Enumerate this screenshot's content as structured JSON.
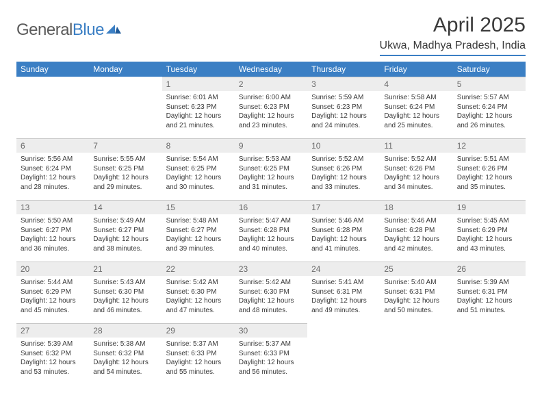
{
  "logo": {
    "part1": "General",
    "part2": "Blue"
  },
  "title": "April 2025",
  "location": "Ukwa, Madhya Pradesh, India",
  "weekdays": [
    "Sunday",
    "Monday",
    "Tuesday",
    "Wednesday",
    "Thursday",
    "Friday",
    "Saturday"
  ],
  "colors": {
    "accent": "#3b7fc4",
    "day_bg": "#ededed",
    "text": "#3a3a3a",
    "muted_text": "#6a6a6a",
    "divider": "#c8c8c8"
  },
  "weeks": [
    [
      {
        "n": "",
        "sunrise": "",
        "sunset": "",
        "daylight": ""
      },
      {
        "n": "",
        "sunrise": "",
        "sunset": "",
        "daylight": ""
      },
      {
        "n": "1",
        "sunrise": "Sunrise: 6:01 AM",
        "sunset": "Sunset: 6:23 PM",
        "daylight": "Daylight: 12 hours and 21 minutes."
      },
      {
        "n": "2",
        "sunrise": "Sunrise: 6:00 AM",
        "sunset": "Sunset: 6:23 PM",
        "daylight": "Daylight: 12 hours and 23 minutes."
      },
      {
        "n": "3",
        "sunrise": "Sunrise: 5:59 AM",
        "sunset": "Sunset: 6:23 PM",
        "daylight": "Daylight: 12 hours and 24 minutes."
      },
      {
        "n": "4",
        "sunrise": "Sunrise: 5:58 AM",
        "sunset": "Sunset: 6:24 PM",
        "daylight": "Daylight: 12 hours and 25 minutes."
      },
      {
        "n": "5",
        "sunrise": "Sunrise: 5:57 AM",
        "sunset": "Sunset: 6:24 PM",
        "daylight": "Daylight: 12 hours and 26 minutes."
      }
    ],
    [
      {
        "n": "6",
        "sunrise": "Sunrise: 5:56 AM",
        "sunset": "Sunset: 6:24 PM",
        "daylight": "Daylight: 12 hours and 28 minutes."
      },
      {
        "n": "7",
        "sunrise": "Sunrise: 5:55 AM",
        "sunset": "Sunset: 6:25 PM",
        "daylight": "Daylight: 12 hours and 29 minutes."
      },
      {
        "n": "8",
        "sunrise": "Sunrise: 5:54 AM",
        "sunset": "Sunset: 6:25 PM",
        "daylight": "Daylight: 12 hours and 30 minutes."
      },
      {
        "n": "9",
        "sunrise": "Sunrise: 5:53 AM",
        "sunset": "Sunset: 6:25 PM",
        "daylight": "Daylight: 12 hours and 31 minutes."
      },
      {
        "n": "10",
        "sunrise": "Sunrise: 5:52 AM",
        "sunset": "Sunset: 6:26 PM",
        "daylight": "Daylight: 12 hours and 33 minutes."
      },
      {
        "n": "11",
        "sunrise": "Sunrise: 5:52 AM",
        "sunset": "Sunset: 6:26 PM",
        "daylight": "Daylight: 12 hours and 34 minutes."
      },
      {
        "n": "12",
        "sunrise": "Sunrise: 5:51 AM",
        "sunset": "Sunset: 6:26 PM",
        "daylight": "Daylight: 12 hours and 35 minutes."
      }
    ],
    [
      {
        "n": "13",
        "sunrise": "Sunrise: 5:50 AM",
        "sunset": "Sunset: 6:27 PM",
        "daylight": "Daylight: 12 hours and 36 minutes."
      },
      {
        "n": "14",
        "sunrise": "Sunrise: 5:49 AM",
        "sunset": "Sunset: 6:27 PM",
        "daylight": "Daylight: 12 hours and 38 minutes."
      },
      {
        "n": "15",
        "sunrise": "Sunrise: 5:48 AM",
        "sunset": "Sunset: 6:27 PM",
        "daylight": "Daylight: 12 hours and 39 minutes."
      },
      {
        "n": "16",
        "sunrise": "Sunrise: 5:47 AM",
        "sunset": "Sunset: 6:28 PM",
        "daylight": "Daylight: 12 hours and 40 minutes."
      },
      {
        "n": "17",
        "sunrise": "Sunrise: 5:46 AM",
        "sunset": "Sunset: 6:28 PM",
        "daylight": "Daylight: 12 hours and 41 minutes."
      },
      {
        "n": "18",
        "sunrise": "Sunrise: 5:46 AM",
        "sunset": "Sunset: 6:28 PM",
        "daylight": "Daylight: 12 hours and 42 minutes."
      },
      {
        "n": "19",
        "sunrise": "Sunrise: 5:45 AM",
        "sunset": "Sunset: 6:29 PM",
        "daylight": "Daylight: 12 hours and 43 minutes."
      }
    ],
    [
      {
        "n": "20",
        "sunrise": "Sunrise: 5:44 AM",
        "sunset": "Sunset: 6:29 PM",
        "daylight": "Daylight: 12 hours and 45 minutes."
      },
      {
        "n": "21",
        "sunrise": "Sunrise: 5:43 AM",
        "sunset": "Sunset: 6:30 PM",
        "daylight": "Daylight: 12 hours and 46 minutes."
      },
      {
        "n": "22",
        "sunrise": "Sunrise: 5:42 AM",
        "sunset": "Sunset: 6:30 PM",
        "daylight": "Daylight: 12 hours and 47 minutes."
      },
      {
        "n": "23",
        "sunrise": "Sunrise: 5:42 AM",
        "sunset": "Sunset: 6:30 PM",
        "daylight": "Daylight: 12 hours and 48 minutes."
      },
      {
        "n": "24",
        "sunrise": "Sunrise: 5:41 AM",
        "sunset": "Sunset: 6:31 PM",
        "daylight": "Daylight: 12 hours and 49 minutes."
      },
      {
        "n": "25",
        "sunrise": "Sunrise: 5:40 AM",
        "sunset": "Sunset: 6:31 PM",
        "daylight": "Daylight: 12 hours and 50 minutes."
      },
      {
        "n": "26",
        "sunrise": "Sunrise: 5:39 AM",
        "sunset": "Sunset: 6:31 PM",
        "daylight": "Daylight: 12 hours and 51 minutes."
      }
    ],
    [
      {
        "n": "27",
        "sunrise": "Sunrise: 5:39 AM",
        "sunset": "Sunset: 6:32 PM",
        "daylight": "Daylight: 12 hours and 53 minutes."
      },
      {
        "n": "28",
        "sunrise": "Sunrise: 5:38 AM",
        "sunset": "Sunset: 6:32 PM",
        "daylight": "Daylight: 12 hours and 54 minutes."
      },
      {
        "n": "29",
        "sunrise": "Sunrise: 5:37 AM",
        "sunset": "Sunset: 6:33 PM",
        "daylight": "Daylight: 12 hours and 55 minutes."
      },
      {
        "n": "30",
        "sunrise": "Sunrise: 5:37 AM",
        "sunset": "Sunset: 6:33 PM",
        "daylight": "Daylight: 12 hours and 56 minutes."
      },
      {
        "n": "",
        "sunrise": "",
        "sunset": "",
        "daylight": ""
      },
      {
        "n": "",
        "sunrise": "",
        "sunset": "",
        "daylight": ""
      },
      {
        "n": "",
        "sunrise": "",
        "sunset": "",
        "daylight": ""
      }
    ]
  ]
}
